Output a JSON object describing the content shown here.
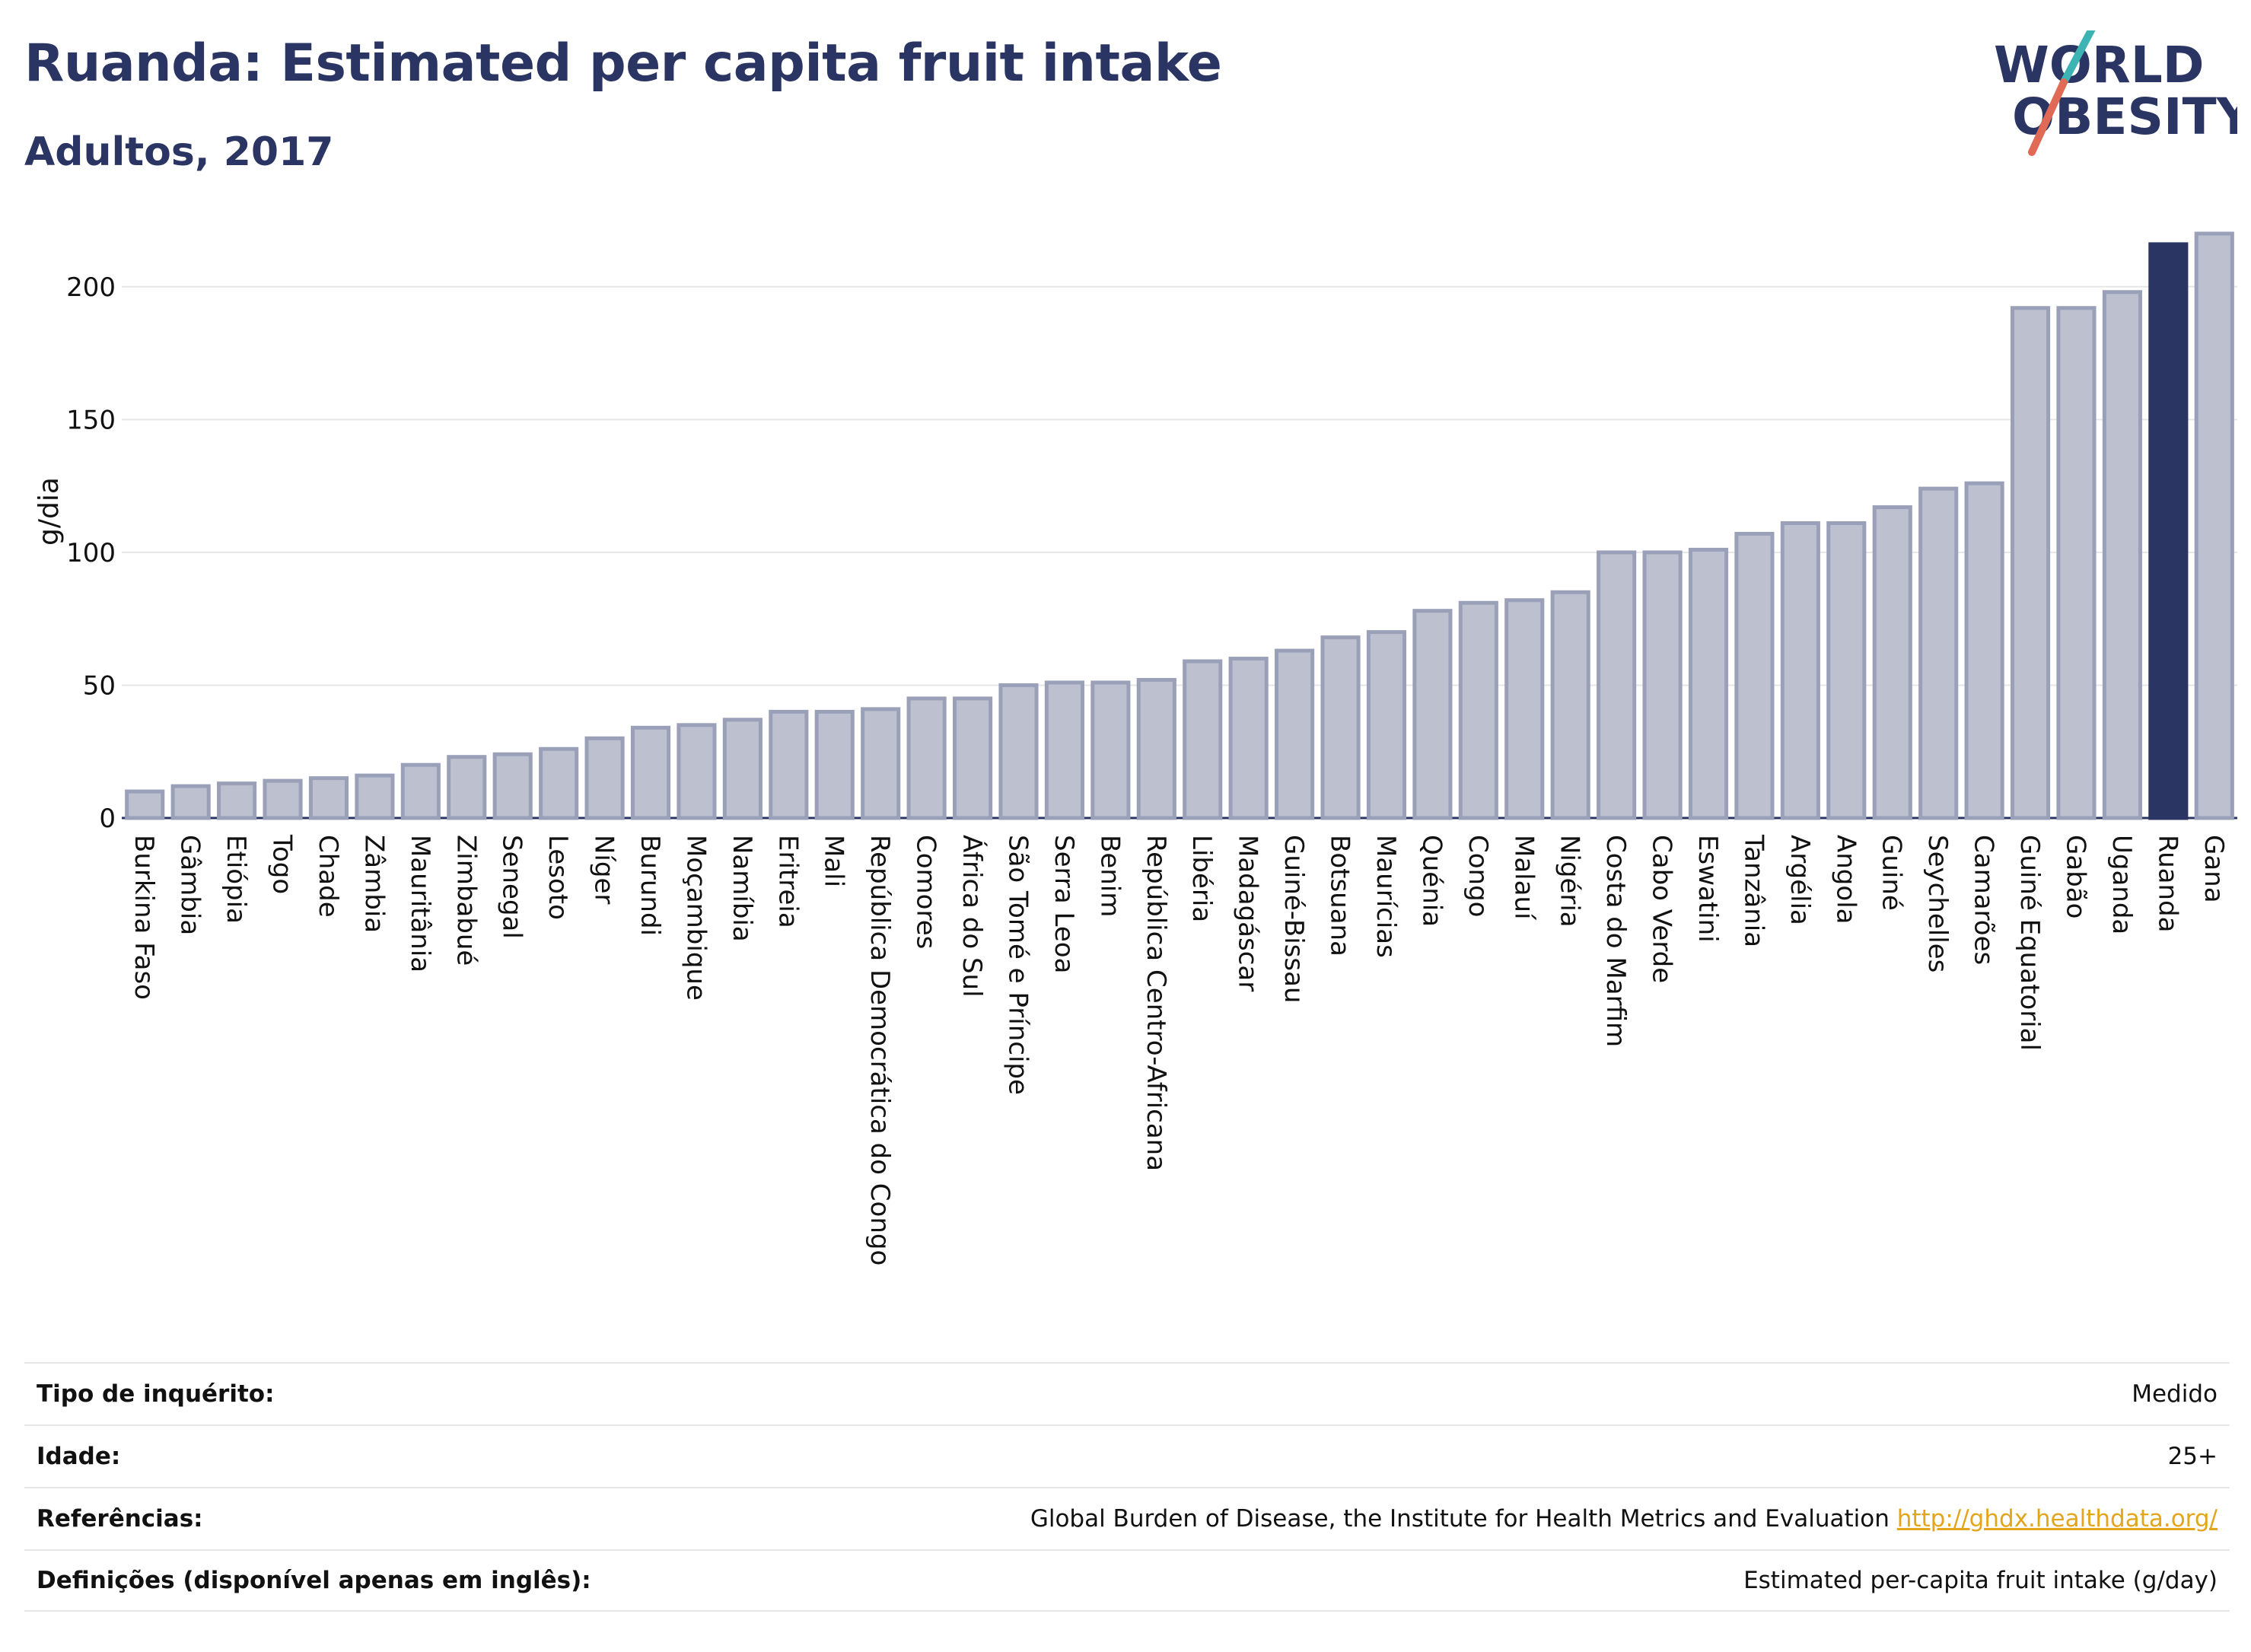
{
  "header": {
    "title": "Ruanda: Estimated per capita fruit intake",
    "subtitle": "Adultos, 2017",
    "logo_line1": "WORLD",
    "logo_line2": "OBESITY"
  },
  "chart_data": {
    "type": "bar",
    "ylabel": "g/dia",
    "ylim": [
      0,
      222
    ],
    "yticks": [
      0,
      50,
      100,
      150,
      200
    ],
    "highlight": "Ruanda",
    "colors": {
      "bar": "#bcc0cf",
      "bar_border": "#9aa0b8",
      "highlight": "#2a3563",
      "grid": "#e6e6e6"
    },
    "categories": [
      "Burkina Faso",
      "Gâmbia",
      "Etiópia",
      "Togo",
      "Chade",
      "Zâmbia",
      "Mauritânia",
      "Zimbabué",
      "Senegal",
      "Lesoto",
      "Níger",
      "Burundi",
      "Moçambique",
      "Namíbia",
      "Eritreia",
      "Mali",
      "República Democrática do Congo",
      "Comores",
      "África do Sul",
      "São Tomé e Príncipe",
      "Serra Leoa",
      "Benim",
      "República Centro-Africana",
      "Libéria",
      "Madagáscar",
      "Guiné-Bissau",
      "Botsuana",
      "Maurícias",
      "Quénia",
      "Congo",
      "Malauí",
      "Nigéria",
      "Costa do Marfim",
      "Cabo Verde",
      "Eswatini",
      "Tanzânia",
      "Argélia",
      "Angola",
      "Guiné",
      "Seychelles",
      "Camarões",
      "Guiné Equatorial",
      "Gabão",
      "Uganda",
      "Ruanda",
      "Gana"
    ],
    "values": [
      10,
      12,
      13,
      14,
      15,
      16,
      20,
      23,
      24,
      26,
      30,
      34,
      35,
      37,
      40,
      40,
      41,
      45,
      45,
      50,
      51,
      51,
      52,
      59,
      60,
      63,
      68,
      70,
      78,
      81,
      82,
      85,
      100,
      100,
      101,
      107,
      111,
      111,
      117,
      124,
      126,
      192,
      192,
      198,
      216,
      220
    ]
  },
  "info": {
    "rows": [
      {
        "label": "Tipo de inquérito:",
        "value": "Medido",
        "link": ""
      },
      {
        "label": "Idade:",
        "value": "25+",
        "link": ""
      },
      {
        "label": "Referências:",
        "value": "Global Burden of Disease, the Institute for Health Metrics and Evaluation ",
        "link": "http://ghdx.healthdata.org/"
      },
      {
        "label": "Definições (disponível apenas em inglês):",
        "value": "Estimated per-capita fruit intake (g/day)",
        "link": ""
      }
    ]
  }
}
